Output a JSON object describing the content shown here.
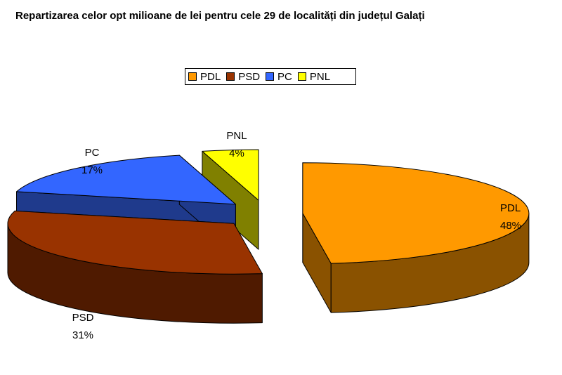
{
  "chart_data": {
    "type": "pie",
    "title": "Repartizarea celor opt milioane de lei pentru cele 29 de localități din județul Galați",
    "legend_position": "top",
    "slices": [
      {
        "name": "PDL",
        "value": 48,
        "label": "48%",
        "color": "#FF9900",
        "side_color": "#8A5200"
      },
      {
        "name": "PSD",
        "value": 31,
        "label": "31%",
        "color": "#993300",
        "side_color": "#4F1A00"
      },
      {
        "name": "PC",
        "value": 17,
        "label": "17%",
        "color": "#3366FF",
        "side_color": "#1F3A8C"
      },
      {
        "name": "PNL",
        "value": 4,
        "label": "4%",
        "color": "#FFFF00",
        "side_color": "#808000"
      }
    ]
  }
}
